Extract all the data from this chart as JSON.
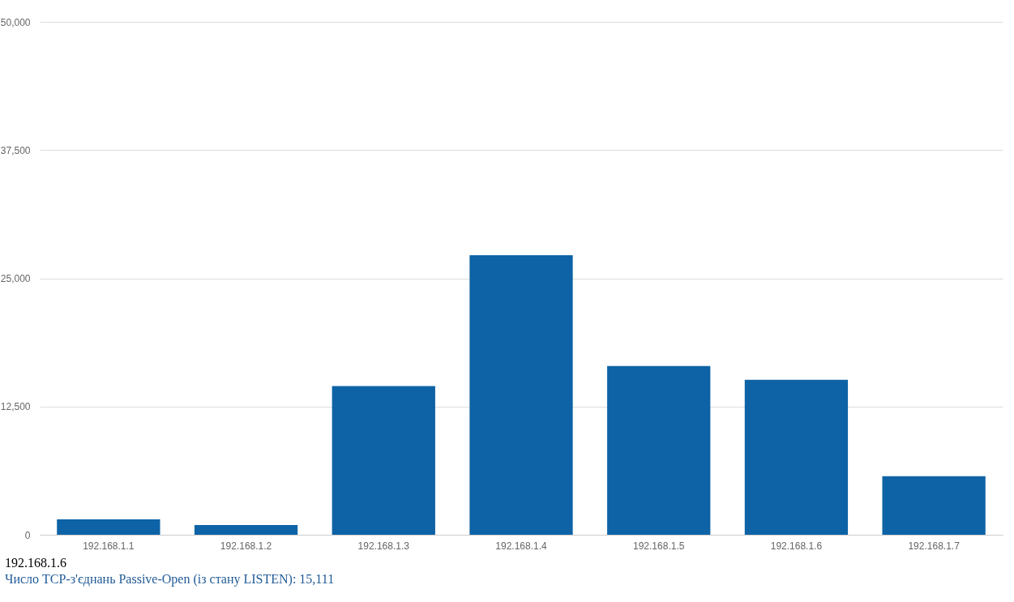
{
  "chart_data": {
    "type": "bar",
    "categories": [
      "192.168.1.1",
      "192.168.1.2",
      "192.168.1.3",
      "192.168.1.4",
      "192.168.1.5",
      "192.168.1.6",
      "192.168.1.7"
    ],
    "values": [
      1500,
      950,
      14500,
      27250,
      16450,
      15111,
      5700
    ],
    "color": "#0d63a5",
    "ylim": [
      0,
      50000
    ],
    "yticks": [
      {
        "value": 0,
        "label": "0"
      },
      {
        "value": 12500,
        "label": "12,500"
      },
      {
        "value": 25000,
        "label": "25,000"
      },
      {
        "value": 37500,
        "label": "37,500"
      },
      {
        "value": 50000,
        "label": "50,000"
      }
    ],
    "grid": "y",
    "annotations": [
      "192.168.1.6",
      "Число TCP-з'єднань Passive-Open (із стану LISTEN): 15,111"
    ]
  }
}
